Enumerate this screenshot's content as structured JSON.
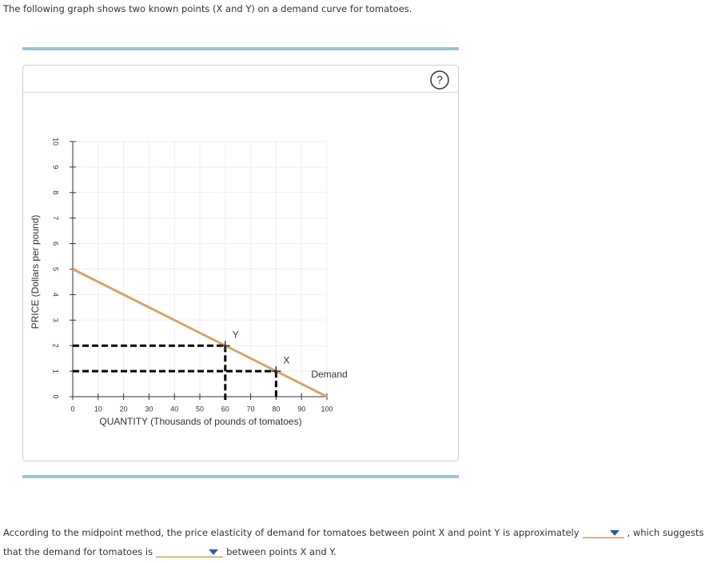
{
  "intro": "The following graph shows two known points (X and Y) on a demand curve for tomatoes.",
  "help": "?",
  "chart_data": {
    "type": "line",
    "x_label": "QUANTITY (Thousands of pounds of tomatoes)",
    "y_label": "PRICE (Dollars per pound)",
    "x": [
      0,
      100
    ],
    "series": [
      {
        "name": "Demand",
        "color": "#d4a46c",
        "values": [
          5,
          0
        ]
      }
    ],
    "points": [
      {
        "label": "Y",
        "x": 60,
        "y": 2
      },
      {
        "label": "X",
        "x": 80,
        "y": 1
      }
    ],
    "xlim": [
      0,
      100
    ],
    "ylim": [
      0,
      10
    ],
    "xticks": [
      0,
      10,
      20,
      30,
      40,
      50,
      60,
      70,
      80,
      90,
      100
    ],
    "yticks": [
      0,
      1,
      2,
      3,
      4,
      5,
      6,
      7,
      8,
      9,
      10
    ],
    "grid": true
  },
  "question": {
    "line1": "According to the midpoint method, the price elasticity of demand for tomatoes between point X and point Y is approximately",
    "line1_end": ", which suggests",
    "line2": "that the demand for tomatoes is",
    "line2_end": "between points X and Y."
  }
}
